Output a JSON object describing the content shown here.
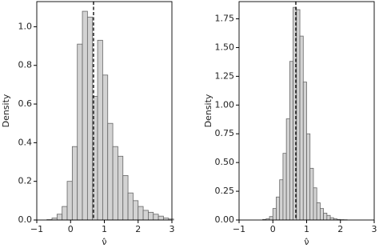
{
  "chart_data": [
    {
      "type": "histogram",
      "x_label": "ν̂",
      "y_label": "Density",
      "color": "#d3d3d3",
      "edge_color": "#666666",
      "bins": [
        -0.7,
        -0.55,
        -0.4,
        -0.25,
        -0.1,
        0.05,
        0.2,
        0.35,
        0.5,
        0.65,
        0.8,
        0.95,
        1.1,
        1.25,
        1.4,
        1.55,
        1.7,
        1.85,
        2.0,
        2.15,
        2.3,
        2.45,
        2.6,
        2.75,
        2.9,
        3.05
      ],
      "values": [
        0.002,
        0.01,
        0.03,
        0.07,
        0.2,
        0.38,
        0.91,
        1.08,
        1.05,
        0.64,
        0.93,
        0.75,
        0.5,
        0.38,
        0.33,
        0.23,
        0.14,
        0.1,
        0.07,
        0.05,
        0.04,
        0.03,
        0.02,
        0.01,
        0.005
      ],
      "vline": 0.68,
      "xlim": [
        -1,
        3
      ],
      "ylim": [
        0,
        1.13
      ],
      "xticks": [
        {
          "value": -1,
          "label": "−1"
        },
        0,
        1,
        2,
        3
      ],
      "yticks": [
        {
          "value": 0,
          "label": "0.0"
        },
        {
          "value": 0.2,
          "label": "0.2"
        },
        {
          "value": 0.4,
          "label": "0.4"
        },
        {
          "value": 0.6,
          "label": "0.6"
        },
        {
          "value": 0.8,
          "label": "0.8"
        },
        {
          "value": 1.0,
          "label": "1.0"
        }
      ]
    },
    {
      "type": "histogram",
      "x_label": "ν̂",
      "y_label": "Density",
      "color": "#d3d3d3",
      "edge_color": "#666666",
      "bins": [
        -0.3,
        -0.2,
        -0.1,
        0.0,
        0.1,
        0.2,
        0.3,
        0.4,
        0.5,
        0.6,
        0.7,
        0.8,
        0.9,
        1.0,
        1.1,
        1.2,
        1.3,
        1.4,
        1.5,
        1.6,
        1.7,
        1.8,
        1.9,
        2.0,
        2.1,
        2.2
      ],
      "values": [
        0.005,
        0.01,
        0.03,
        0.1,
        0.2,
        0.35,
        0.58,
        0.88,
        1.38,
        1.85,
        1.83,
        1.6,
        1.2,
        0.75,
        0.45,
        0.28,
        0.15,
        0.1,
        0.06,
        0.04,
        0.02,
        0.01,
        0.005,
        0.003,
        0.002
      ],
      "vline": 0.68,
      "xlim": [
        -1,
        3
      ],
      "ylim": [
        0,
        1.9
      ],
      "xticks": [
        {
          "value": -1,
          "label": "−1"
        },
        0,
        1,
        2,
        3
      ],
      "yticks": [
        {
          "value": 0,
          "label": "0.00"
        },
        {
          "value": 0.25,
          "label": "0.25"
        },
        {
          "value": 0.5,
          "label": "0.50"
        },
        {
          "value": 0.75,
          "label": "0.75"
        },
        {
          "value": 1.0,
          "label": "1.00"
        },
        {
          "value": 1.25,
          "label": "1.25"
        },
        {
          "value": 1.5,
          "label": "1.50"
        },
        {
          "value": 1.75,
          "label": "1.75"
        }
      ]
    }
  ]
}
